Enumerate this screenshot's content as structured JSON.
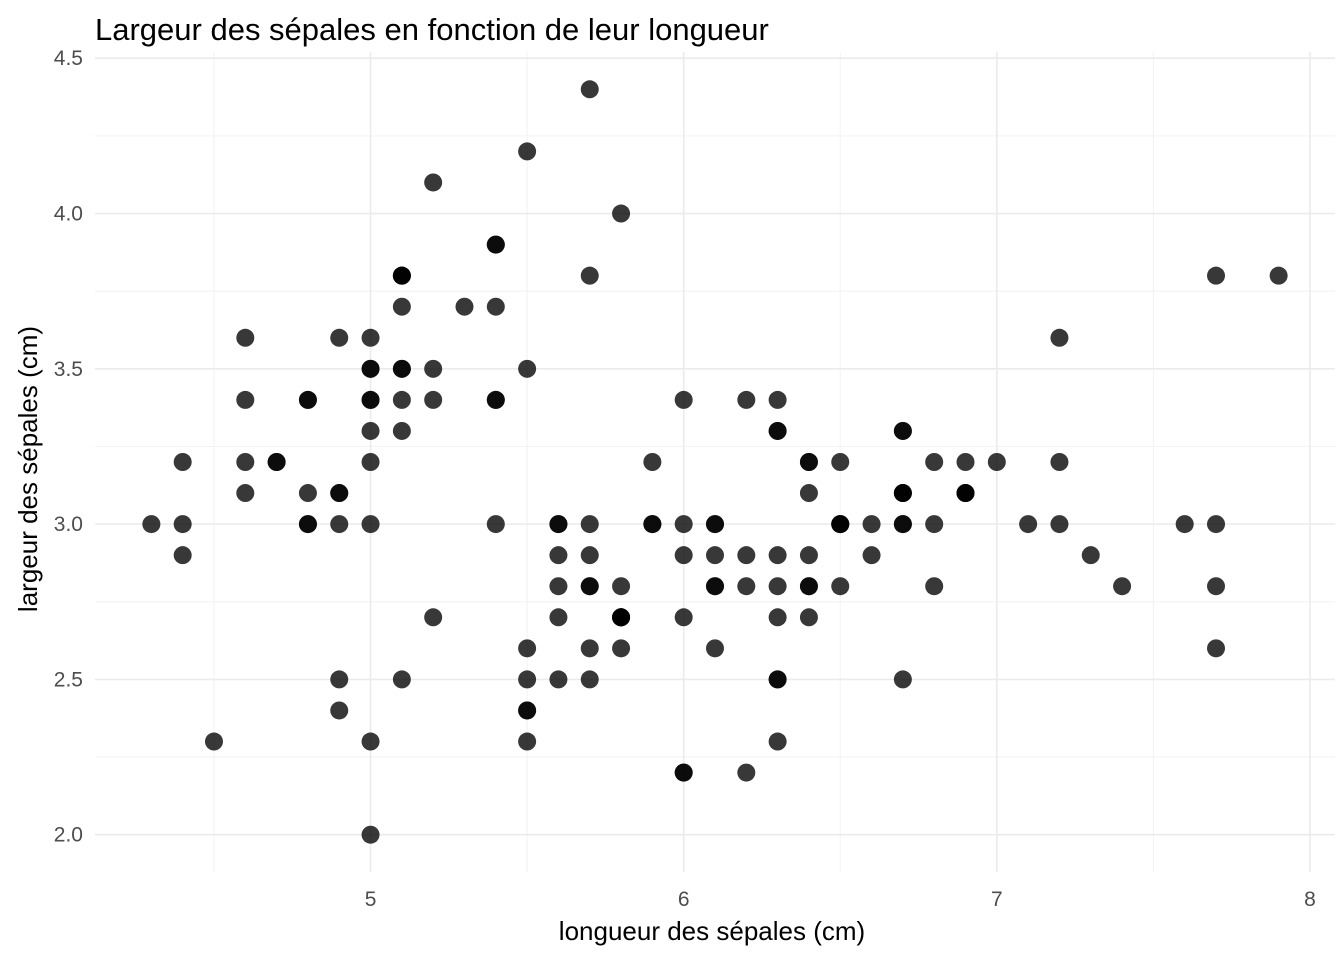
{
  "chart_data": {
    "type": "scatter",
    "title": "Largeur des sépales en fonction de leur longueur",
    "xlabel": "longueur des sépales (cm)",
    "ylabel": "largeur des sépales (cm)",
    "xlim": [
      4.12,
      8.08
    ],
    "ylim": [
      1.88,
      4.52
    ],
    "x_ticks": [
      5,
      6,
      7,
      8
    ],
    "x_tick_labels": [
      "5",
      "6",
      "7",
      "8"
    ],
    "y_ticks": [
      2.0,
      2.5,
      3.0,
      3.5,
      4.0,
      4.5
    ],
    "y_tick_labels": [
      "2.0",
      "2.5",
      "3.0",
      "3.5",
      "4.0",
      "4.5"
    ],
    "grid": true,
    "point_color": "#000000",
    "points": [
      [
        5.1,
        3.5
      ],
      [
        4.9,
        3.0
      ],
      [
        4.7,
        3.2
      ],
      [
        4.6,
        3.1
      ],
      [
        5.0,
        3.6
      ],
      [
        5.4,
        3.9
      ],
      [
        4.6,
        3.4
      ],
      [
        5.0,
        3.4
      ],
      [
        4.4,
        2.9
      ],
      [
        4.9,
        3.1
      ],
      [
        5.4,
        3.7
      ],
      [
        4.8,
        3.4
      ],
      [
        4.8,
        3.0
      ],
      [
        4.3,
        3.0
      ],
      [
        5.8,
        4.0
      ],
      [
        5.7,
        4.4
      ],
      [
        5.4,
        3.9
      ],
      [
        5.1,
        3.5
      ],
      [
        5.7,
        3.8
      ],
      [
        5.1,
        3.8
      ],
      [
        5.4,
        3.4
      ],
      [
        5.1,
        3.7
      ],
      [
        4.6,
        3.6
      ],
      [
        5.1,
        3.3
      ],
      [
        4.8,
        3.4
      ],
      [
        5.0,
        3.0
      ],
      [
        5.0,
        3.4
      ],
      [
        5.2,
        3.5
      ],
      [
        5.2,
        3.4
      ],
      [
        4.7,
        3.2
      ],
      [
        4.8,
        3.1
      ],
      [
        5.4,
        3.4
      ],
      [
        5.2,
        4.1
      ],
      [
        5.5,
        4.2
      ],
      [
        4.9,
        3.1
      ],
      [
        5.0,
        3.2
      ],
      [
        5.5,
        3.5
      ],
      [
        4.9,
        3.6
      ],
      [
        4.4,
        3.0
      ],
      [
        5.1,
        3.4
      ],
      [
        5.0,
        3.5
      ],
      [
        4.5,
        2.3
      ],
      [
        4.4,
        3.2
      ],
      [
        5.0,
        3.5
      ],
      [
        5.1,
        3.8
      ],
      [
        4.8,
        3.0
      ],
      [
        5.1,
        3.8
      ],
      [
        4.6,
        3.2
      ],
      [
        5.3,
        3.7
      ],
      [
        5.0,
        3.3
      ],
      [
        7.0,
        3.2
      ],
      [
        6.4,
        3.2
      ],
      [
        6.9,
        3.1
      ],
      [
        5.5,
        2.3
      ],
      [
        6.5,
        2.8
      ],
      [
        5.7,
        2.8
      ],
      [
        6.3,
        3.3
      ],
      [
        4.9,
        2.4
      ],
      [
        6.6,
        2.9
      ],
      [
        5.2,
        2.7
      ],
      [
        5.0,
        2.0
      ],
      [
        5.9,
        3.0
      ],
      [
        6.0,
        2.2
      ],
      [
        6.1,
        2.9
      ],
      [
        5.6,
        2.9
      ],
      [
        6.7,
        3.1
      ],
      [
        5.6,
        3.0
      ],
      [
        5.8,
        2.7
      ],
      [
        6.2,
        2.2
      ],
      [
        5.6,
        2.5
      ],
      [
        5.9,
        3.2
      ],
      [
        6.1,
        2.8
      ],
      [
        6.3,
        2.5
      ],
      [
        6.1,
        2.8
      ],
      [
        6.4,
        2.9
      ],
      [
        6.6,
        3.0
      ],
      [
        6.8,
        2.8
      ],
      [
        6.7,
        3.0
      ],
      [
        6.0,
        2.9
      ],
      [
        5.7,
        2.6
      ],
      [
        5.5,
        2.4
      ],
      [
        5.5,
        2.4
      ],
      [
        5.8,
        2.7
      ],
      [
        6.0,
        2.7
      ],
      [
        5.4,
        3.0
      ],
      [
        6.0,
        3.4
      ],
      [
        6.7,
        3.1
      ],
      [
        6.3,
        2.3
      ],
      [
        5.6,
        3.0
      ],
      [
        5.5,
        2.5
      ],
      [
        5.5,
        2.6
      ],
      [
        6.1,
        3.0
      ],
      [
        5.8,
        2.6
      ],
      [
        5.0,
        2.3
      ],
      [
        5.6,
        2.7
      ],
      [
        5.7,
        3.0
      ],
      [
        5.7,
        2.9
      ],
      [
        6.2,
        2.9
      ],
      [
        5.1,
        2.5
      ],
      [
        5.7,
        2.8
      ],
      [
        6.3,
        3.3
      ],
      [
        5.8,
        2.7
      ],
      [
        7.1,
        3.0
      ],
      [
        6.3,
        2.9
      ],
      [
        6.5,
        3.0
      ],
      [
        7.6,
        3.0
      ],
      [
        4.9,
        2.5
      ],
      [
        7.3,
        2.9
      ],
      [
        6.7,
        2.5
      ],
      [
        7.2,
        3.6
      ],
      [
        6.5,
        3.2
      ],
      [
        6.4,
        2.7
      ],
      [
        6.8,
        3.0
      ],
      [
        5.7,
        2.5
      ],
      [
        5.8,
        2.8
      ],
      [
        6.4,
        3.2
      ],
      [
        6.5,
        3.0
      ],
      [
        7.7,
        3.8
      ],
      [
        7.7,
        2.6
      ],
      [
        6.0,
        2.2
      ],
      [
        6.9,
        3.2
      ],
      [
        5.6,
        2.8
      ],
      [
        7.7,
        2.8
      ],
      [
        6.3,
        2.7
      ],
      [
        6.7,
        3.3
      ],
      [
        7.2,
        3.2
      ],
      [
        6.2,
        2.8
      ],
      [
        6.1,
        3.0
      ],
      [
        6.4,
        2.8
      ],
      [
        7.2,
        3.0
      ],
      [
        7.4,
        2.8
      ],
      [
        7.9,
        3.8
      ],
      [
        6.4,
        2.8
      ],
      [
        6.3,
        2.8
      ],
      [
        6.1,
        2.6
      ],
      [
        7.7,
        3.0
      ],
      [
        6.3,
        3.4
      ],
      [
        6.4,
        3.1
      ],
      [
        6.0,
        3.0
      ],
      [
        6.9,
        3.1
      ],
      [
        6.7,
        3.1
      ],
      [
        6.9,
        3.1
      ],
      [
        5.8,
        2.7
      ],
      [
        6.8,
        3.2
      ],
      [
        6.7,
        3.3
      ],
      [
        6.7,
        3.0
      ],
      [
        6.3,
        2.5
      ],
      [
        6.5,
        3.0
      ],
      [
        6.2,
        3.4
      ],
      [
        5.9,
        3.0
      ]
    ]
  }
}
